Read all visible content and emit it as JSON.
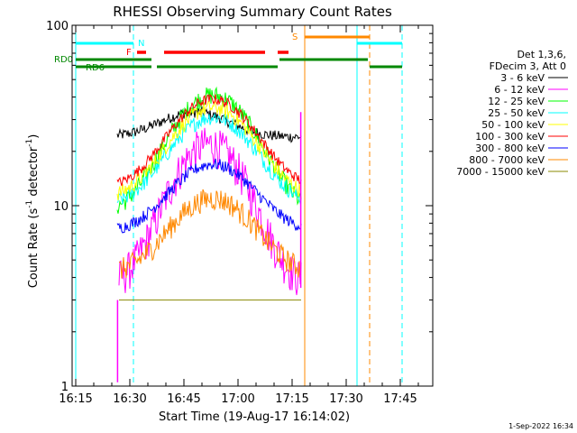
{
  "chart_data": {
    "type": "line",
    "title": "RHESSI Observing Summary Count Rates",
    "xlabel": "Start Time (19-Aug-17 16:14:02)",
    "ylabel_main": "Count Rate (s",
    "ylabel_exp1": "-1",
    "ylabel_mid": " detector",
    "ylabel_exp2": "-1",
    "ylabel_end": ")",
    "ylog": true,
    "ylim": [
      1,
      100
    ],
    "xlim_min": [
      14.0,
      114.0
    ],
    "x_ticks": [
      {
        "m": 15,
        "label": "16:15"
      },
      {
        "m": 30,
        "label": "16:30"
      },
      {
        "m": 45,
        "label": "16:45"
      },
      {
        "m": 60,
        "label": "17:00"
      },
      {
        "m": 75,
        "label": "17:15"
      },
      {
        "m": 90,
        "label": "17:30"
      },
      {
        "m": 105,
        "label": "17:45"
      }
    ],
    "y_ticks": [
      {
        "v": 1,
        "label": "1"
      },
      {
        "v": 10,
        "label": "10"
      },
      {
        "v": 100,
        "label": "100"
      }
    ],
    "legend_title": [
      "Det 1,3,6,",
      "FDecim 3, Att 0"
    ],
    "series": [
      {
        "name": "3 - 6 keV",
        "color": "#000000",
        "start": 26.5,
        "end": 77.5,
        "base": 24,
        "peak": 33,
        "peak_t": 48,
        "width": 9,
        "noise": 0.07
      },
      {
        "name": "6 - 12 keV",
        "color": "#ff00ff",
        "start": 27.0,
        "end": 77.5,
        "base": 3.6,
        "peak": 22,
        "peak_t": 52,
        "width": 9,
        "noise": 0.25
      },
      {
        "name": "12 - 25 keV",
        "color": "#00ff00",
        "start": 26.5,
        "end": 77.5,
        "base": 9,
        "peak": 41,
        "peak_t": 53,
        "width": 10,
        "noise": 0.12
      },
      {
        "name": "25 - 50 keV",
        "color": "#00ffff",
        "start": 26.5,
        "end": 77.5,
        "base": 10,
        "peak": 31,
        "peak_t": 53,
        "width": 10,
        "noise": 0.1
      },
      {
        "name": "50 - 100 keV",
        "color": "#ffff00",
        "start": 26.5,
        "end": 77.5,
        "base": 11,
        "peak": 35,
        "peak_t": 53,
        "width": 10,
        "noise": 0.1
      },
      {
        "name": "100 - 300 keV",
        "color": "#ff0000",
        "start": 26.5,
        "end": 77.5,
        "base": 12.5,
        "peak": 39,
        "peak_t": 53,
        "width": 10,
        "noise": 0.07
      },
      {
        "name": "300 - 800 keV",
        "color": "#0000ff",
        "start": 26.5,
        "end": 77.5,
        "base": 7.2,
        "peak": 17,
        "peak_t": 53,
        "width": 10,
        "noise": 0.08
      },
      {
        "name": "800 - 7000 keV",
        "color": "#ff8800",
        "start": 27.0,
        "end": 77.5,
        "base": 4.2,
        "peak": 11,
        "peak_t": 53,
        "width": 10,
        "noise": 0.15
      },
      {
        "name": "7000 - 15000 keV",
        "color": "#888800",
        "start": 27.0,
        "end": 77.5,
        "base": 3.0,
        "peak": 3.0,
        "peak_t": 53,
        "width": 10,
        "noise": 0.0
      }
    ],
    "flags": {
      "N": {
        "label": "N",
        "color": "#00ffff",
        "segments": [
          [
            15,
            31.0
          ],
          [
            93,
            105.5
          ]
        ]
      },
      "F": {
        "label": "F",
        "color": "#ff0000",
        "segments": [
          [
            32.0,
            34.5
          ],
          [
            39.5,
            67.5
          ],
          [
            71.0,
            74.0
          ]
        ]
      },
      "S": {
        "label": "S",
        "color": "#ff8800",
        "segments": [
          [
            78.5,
            96.5
          ]
        ]
      },
      "RD0": {
        "label": "RD0",
        "color": "#008800",
        "segments": [
          [
            15,
            36.0
          ],
          [
            71.5,
            96.0
          ]
        ]
      },
      "RD6": {
        "label": "RD6",
        "color": "#008800",
        "segments": [
          [
            15,
            36.0
          ],
          [
            37.5,
            71.0
          ],
          [
            96.5,
            105.5
          ]
        ]
      }
    },
    "vlines": [
      {
        "m": 31.0,
        "color": "#00ffff",
        "dash": true
      },
      {
        "m": 93.0,
        "color": "#00ffff",
        "dash": false
      },
      {
        "m": 105.5,
        "color": "#00ffff",
        "dash": true
      },
      {
        "m": 78.5,
        "color": "#ff8800",
        "dash": false
      },
      {
        "m": 96.5,
        "color": "#ff8800",
        "dash": true
      },
      {
        "m": 15.0,
        "color": "#00ffff",
        "dash": false
      }
    ]
  },
  "footer_date": "1-Sep-2022 16:34"
}
